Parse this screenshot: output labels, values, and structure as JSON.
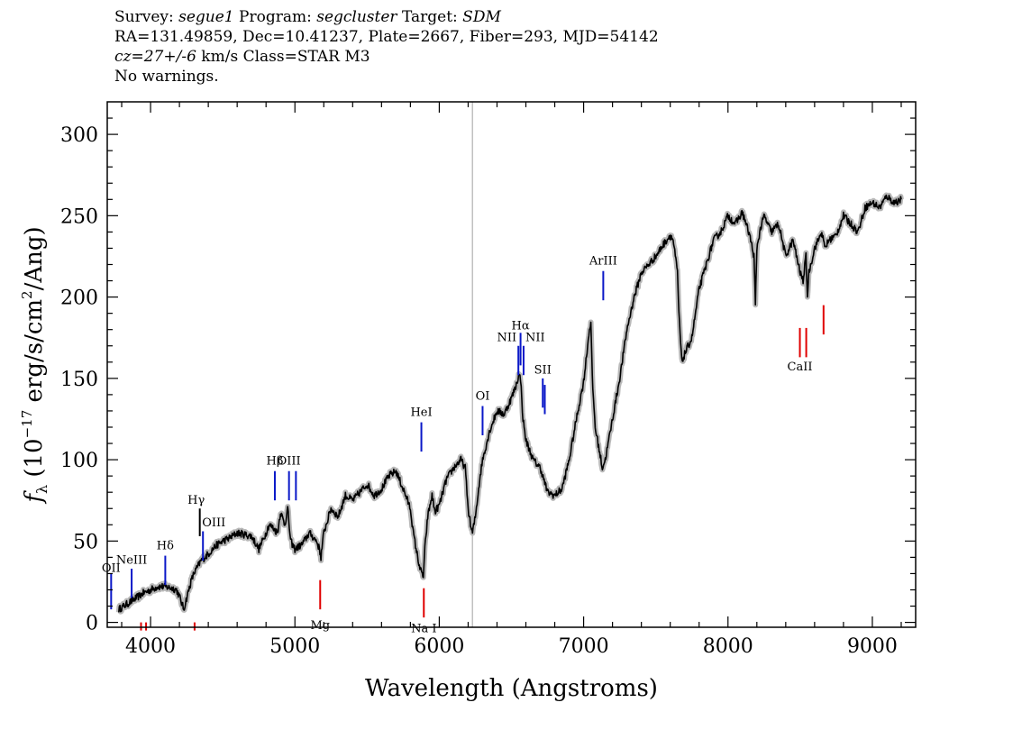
{
  "header": {
    "line1": {
      "survey_label": "Survey:",
      "survey": "segue1",
      "program_label": "Program:",
      "program": "segcluster",
      "target_label": "Target:",
      "target": "SDM"
    },
    "line2": "RA=131.49859, Dec=10.41237, Plate=2667, Fiber=293, MJD=54142",
    "line3": {
      "cz": "cz=27+/-6",
      "rest": "km/s Class=STAR M3"
    },
    "line4": "No warnings."
  },
  "chart_data": {
    "type": "line",
    "xlabel": "Wavelength (Angstroms)",
    "ylabel": "f_λ (10^-17 erg/s/cm^2/Ang)",
    "xlim": [
      3700,
      9300
    ],
    "ylim": [
      -3,
      320
    ],
    "xticks": [
      4000,
      5000,
      6000,
      7000,
      8000,
      9000
    ],
    "yticks": [
      0,
      50,
      100,
      150,
      200,
      250,
      300
    ],
    "grid": false,
    "vertical_marker_x": 6230,
    "spectrum": {
      "x": [
        3780,
        3850,
        3900,
        3950,
        4000,
        4050,
        4100,
        4150,
        4180,
        4200,
        4230,
        4250,
        4280,
        4300,
        4350,
        4400,
        4450,
        4500,
        4550,
        4600,
        4650,
        4700,
        4750,
        4800,
        4820,
        4850,
        4880,
        4900,
        4930,
        4950,
        4970,
        5000,
        5050,
        5100,
        5150,
        5170,
        5180,
        5200,
        5250,
        5300,
        5350,
        5400,
        5450,
        5500,
        5550,
        5600,
        5650,
        5700,
        5750,
        5780,
        5800,
        5820,
        5850,
        5870,
        5890,
        5900,
        5920,
        5950,
        5970,
        6000,
        6050,
        6100,
        6150,
        6180,
        6200,
        6220,
        6230,
        6250,
        6280,
        6300,
        6350,
        6400,
        6450,
        6500,
        6530,
        6550,
        6563,
        6580,
        6600,
        6650,
        6700,
        6750,
        6800,
        6850,
        6900,
        6950,
        7000,
        7040,
        7050,
        7060,
        7080,
        7100,
        7130,
        7150,
        7200,
        7250,
        7300,
        7350,
        7400,
        7450,
        7500,
        7550,
        7600,
        7620,
        7650,
        7660,
        7680,
        7700,
        7750,
        7800,
        7850,
        7900,
        7950,
        8000,
        8050,
        8100,
        8150,
        8180,
        8190,
        8200,
        8220,
        8250,
        8300,
        8350,
        8400,
        8450,
        8500,
        8520,
        8540,
        8550,
        8560,
        8600,
        8650,
        8670,
        8700,
        8750,
        8800,
        8850,
        8900,
        8950,
        9000,
        9050,
        9100,
        9150,
        9200
      ],
      "y": [
        8,
        12,
        15,
        18,
        20,
        22,
        22,
        21,
        20,
        16,
        8,
        15,
        25,
        30,
        38,
        42,
        47,
        50,
        52,
        55,
        54,
        53,
        45,
        55,
        60,
        58,
        55,
        68,
        60,
        70,
        50,
        45,
        48,
        55,
        50,
        45,
        40,
        55,
        70,
        65,
        78,
        75,
        80,
        85,
        78,
        82,
        90,
        93,
        82,
        75,
        70,
        55,
        40,
        32,
        28,
        45,
        65,
        78,
        68,
        72,
        88,
        95,
        100,
        95,
        70,
        58,
        55,
        65,
        88,
        100,
        118,
        130,
        128,
        138,
        145,
        152,
        150,
        125,
        112,
        100,
        95,
        80,
        78,
        82,
        100,
        125,
        148,
        180,
        185,
        150,
        120,
        110,
        95,
        100,
        125,
        150,
        180,
        200,
        215,
        220,
        225,
        232,
        238,
        235,
        215,
        190,
        160,
        165,
        175,
        205,
        220,
        235,
        240,
        250,
        245,
        252,
        238,
        225,
        195,
        230,
        240,
        250,
        240,
        245,
        225,
        235,
        215,
        210,
        225,
        200,
        215,
        230,
        240,
        230,
        235,
        238,
        250,
        245,
        240,
        255,
        258,
        255,
        262,
        258,
        260
      ]
    },
    "lines": [
      {
        "label": "OII",
        "x": 3727,
        "color": "blue",
        "y_from": 8,
        "y_to": 30,
        "label_y": 31
      },
      {
        "label": "NeIII",
        "x": 3869,
        "color": "blue",
        "y_from": 15,
        "y_to": 33,
        "label_y": 36
      },
      {
        "label": "Hδ",
        "x": 4102,
        "color": "blue",
        "y_from": 23,
        "y_to": 41,
        "label_y": 45
      },
      {
        "label": "Hγ",
        "x": 4341,
        "color": "black",
        "y_from": 53,
        "y_to": 70,
        "label_y": 73
      },
      {
        "label": "OIII",
        "x": 4363,
        "color": "blue",
        "y_from": 38,
        "y_to": 56,
        "label_y": 59
      },
      {
        "label": "Hβ",
        "x": 4861,
        "color": "blue",
        "y_from": 75,
        "y_to": 93,
        "label_y": 97
      },
      {
        "label": "OIII",
        "x": 4959,
        "color": "blue",
        "y_from": 75,
        "y_to": 93,
        "label_y": 97
      },
      {
        "label": "",
        "x": 5007,
        "color": "blue",
        "y_from": 75,
        "y_to": 93,
        "label_y": 97
      },
      {
        "label": "HeI",
        "x": 5876,
        "color": "blue",
        "y_from": 105,
        "y_to": 123,
        "label_y": 127
      },
      {
        "label": "OI",
        "x": 6300,
        "color": "blue",
        "y_from": 115,
        "y_to": 133,
        "label_y": 137
      },
      {
        "label": "NII",
        "x": 6548,
        "color": "blue",
        "y_from": 152,
        "y_to": 170,
        "label_y": 173
      },
      {
        "label": "Hα",
        "x": 6563,
        "color": "blue",
        "y_from": 158,
        "y_to": 178,
        "label_y": 180
      },
      {
        "label": "NII",
        "x": 6584,
        "color": "blue",
        "y_from": 152,
        "y_to": 170,
        "label_y": 173
      },
      {
        "label": "SII",
        "x": 6717,
        "color": "blue",
        "y_from": 132,
        "y_to": 150,
        "label_y": 153
      },
      {
        "label": "",
        "x": 6731,
        "color": "blue",
        "y_from": 128,
        "y_to": 146,
        "label_y": 153
      },
      {
        "label": "ArIII",
        "x": 7136,
        "color": "blue",
        "y_from": 198,
        "y_to": 216,
        "label_y": 220
      },
      {
        "label": "Mg",
        "x": 5175,
        "color": "red",
        "y_from": 8,
        "y_to": 26,
        "label_y": -4
      },
      {
        "label": "Na I",
        "x": 5893,
        "color": "red",
        "y_from": 3,
        "y_to": 21,
        "label_y": -6
      },
      {
        "label": "CaII",
        "x": 8498,
        "color": "red",
        "y_from": 163,
        "y_to": 181,
        "label_y": 155
      },
      {
        "label": "",
        "x": 8542,
        "color": "red",
        "y_from": 163,
        "y_to": 181,
        "label_y": 155
      },
      {
        "label": "",
        "x": 8662,
        "color": "red",
        "y_from": 177,
        "y_to": 195,
        "label_y": 155
      },
      {
        "label": "",
        "x": 3934,
        "color": "red",
        "y_from": -5,
        "y_to": 0,
        "label_y": -10
      },
      {
        "label": "",
        "x": 3969,
        "color": "red",
        "y_from": -5,
        "y_to": 0,
        "label_y": -10
      },
      {
        "label": "",
        "x": 4305,
        "color": "red",
        "y_from": -5,
        "y_to": 0,
        "label_y": -10
      }
    ],
    "colors": {
      "blue": "#0a18c8",
      "red": "#e00000",
      "black": "#000000",
      "spectrum": "#000000",
      "error": "#b8b8b8",
      "marker": "#c0c0c0"
    }
  }
}
